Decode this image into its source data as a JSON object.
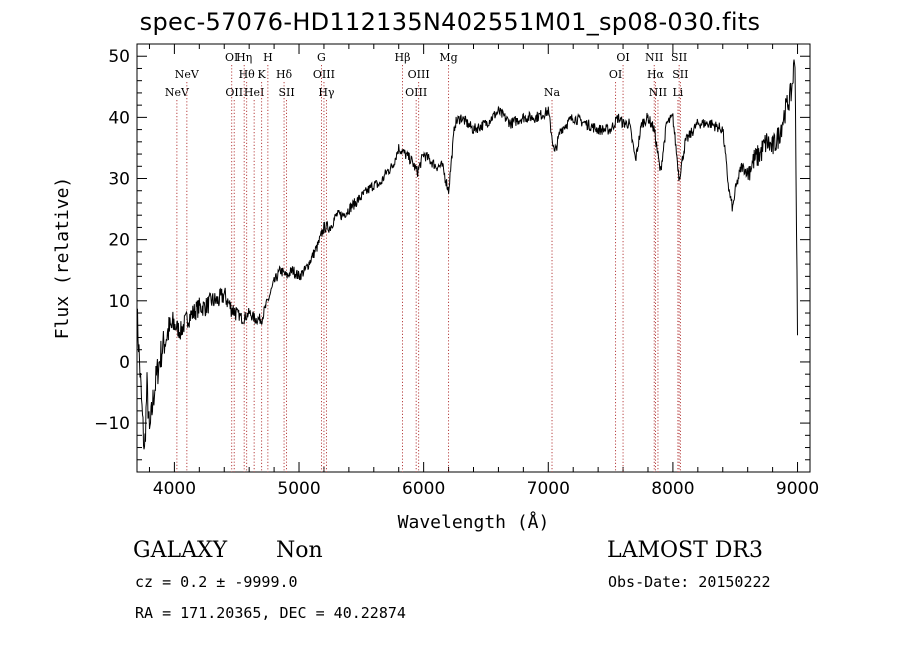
{
  "chart_data": {
    "type": "line",
    "title": "spec-57076-HD112135N402551M01_sp08-030.fits",
    "xlabel": "Wavelength (Å)",
    "ylabel": "Flux (relative)",
    "xlim": [
      3700,
      9100
    ],
    "ylim": [
      -18,
      52
    ],
    "xticks": [
      4000,
      5000,
      6000,
      7000,
      8000,
      9000
    ],
    "yticks": [
      -10,
      0,
      10,
      20,
      30,
      40,
      50
    ],
    "spectrum_anchors": {
      "x": [
        3700,
        3720,
        3740,
        3760,
        3780,
        3800,
        3830,
        3860,
        3900,
        3950,
        4000,
        4050,
        4100,
        4150,
        4200,
        4250,
        4300,
        4350,
        4400,
        4450,
        4500,
        4550,
        4600,
        4650,
        4700,
        4750,
        4800,
        4850,
        4900,
        4950,
        5000,
        5050,
        5100,
        5150,
        5200,
        5250,
        5300,
        5350,
        5400,
        5450,
        5500,
        5550,
        5600,
        5650,
        5700,
        5750,
        5800,
        5850,
        5900,
        5950,
        6000,
        6050,
        6100,
        6150,
        6200,
        6250,
        6300,
        6350,
        6400,
        6500,
        6600,
        6700,
        6800,
        6900,
        7000,
        7050,
        7100,
        7200,
        7300,
        7400,
        7500,
        7560,
        7600,
        7650,
        7700,
        7750,
        7800,
        7850,
        7900,
        7950,
        8000,
        8050,
        8100,
        8200,
        8300,
        8400,
        8450,
        8480,
        8500,
        8550,
        8600,
        8650,
        8700,
        8750,
        8800,
        8850,
        8900,
        8950,
        8980,
        9000
      ],
      "y": [
        8,
        0,
        -8,
        -15,
        -4,
        -12,
        -6,
        -2,
        2,
        5,
        6,
        5,
        7,
        8,
        9,
        9,
        10,
        10,
        11,
        9,
        8,
        7,
        8,
        7,
        7,
        10,
        13,
        15,
        14,
        15,
        14,
        15,
        17,
        19,
        22,
        22,
        24,
        24,
        25,
        26,
        27,
        28,
        29,
        29,
        31,
        32,
        35,
        34,
        33,
        31,
        34,
        33,
        32,
        32,
        28,
        39,
        40,
        39,
        38,
        39,
        41,
        39,
        40,
        40,
        41,
        34,
        38,
        40,
        39,
        38,
        38,
        40,
        39,
        39,
        33,
        39,
        40,
        38,
        31,
        39,
        40,
        30,
        36,
        39,
        39,
        38,
        28,
        25,
        28,
        32,
        31,
        33,
        34,
        36,
        35,
        37,
        41,
        44,
        50,
        4
      ]
    },
    "lines": [
      {
        "label": "NeV",
        "x": 4020,
        "row": 2
      },
      {
        "label": "NeV",
        "x": 4100,
        "row": 1
      },
      {
        "label": "OI",
        "x": 4460,
        "row": 0
      },
      {
        "label": "OII",
        "x": 4480,
        "row": 2
      },
      {
        "label": "Hη",
        "x": 4560,
        "row": 0
      },
      {
        "label": "Hθ",
        "x": 4580,
        "row": 1
      },
      {
        "label": "HeI",
        "x": 4640,
        "row": 2
      },
      {
        "label": "H",
        "x": 4750,
        "row": 0
      },
      {
        "label": "K",
        "x": 4700,
        "row": 1
      },
      {
        "label": "Hδ",
        "x": 4880,
        "row": 1
      },
      {
        "label": "SII",
        "x": 4900,
        "row": 2
      },
      {
        "label": "G",
        "x": 5180,
        "row": 0
      },
      {
        "label": "OIII",
        "x": 5200,
        "row": 1
      },
      {
        "label": "Hγ",
        "x": 5220,
        "row": 2
      },
      {
        "label": "Hβ",
        "x": 5830,
        "row": 0
      },
      {
        "label": "OIII",
        "x": 5960,
        "row": 1
      },
      {
        "label": "OIII",
        "x": 5940,
        "row": 2
      },
      {
        "label": "Mg",
        "x": 6200,
        "row": 0
      },
      {
        "label": "Na",
        "x": 7030,
        "row": 2
      },
      {
        "label": "OI",
        "x": 7600,
        "row": 0
      },
      {
        "label": "OI",
        "x": 7540,
        "row": 1
      },
      {
        "label": "NII",
        "x": 7850,
        "row": 0
      },
      {
        "label": "Hα",
        "x": 7860,
        "row": 1
      },
      {
        "label": "NII",
        "x": 7880,
        "row": 2
      },
      {
        "label": "SII",
        "x": 8050,
        "row": 0
      },
      {
        "label": "SII",
        "x": 8060,
        "row": 1
      },
      {
        "label": "Li",
        "x": 8040,
        "row": 2
      }
    ]
  },
  "footer": {
    "class_label": "GALAXY",
    "subclass_label": "Non",
    "survey": "LAMOST DR3",
    "cz_text": "cz = 0.2 ± -9999.0",
    "obs_date": "Obs-Date: 20150222",
    "coords": "RA = 171.20365, DEC =  40.22874"
  }
}
